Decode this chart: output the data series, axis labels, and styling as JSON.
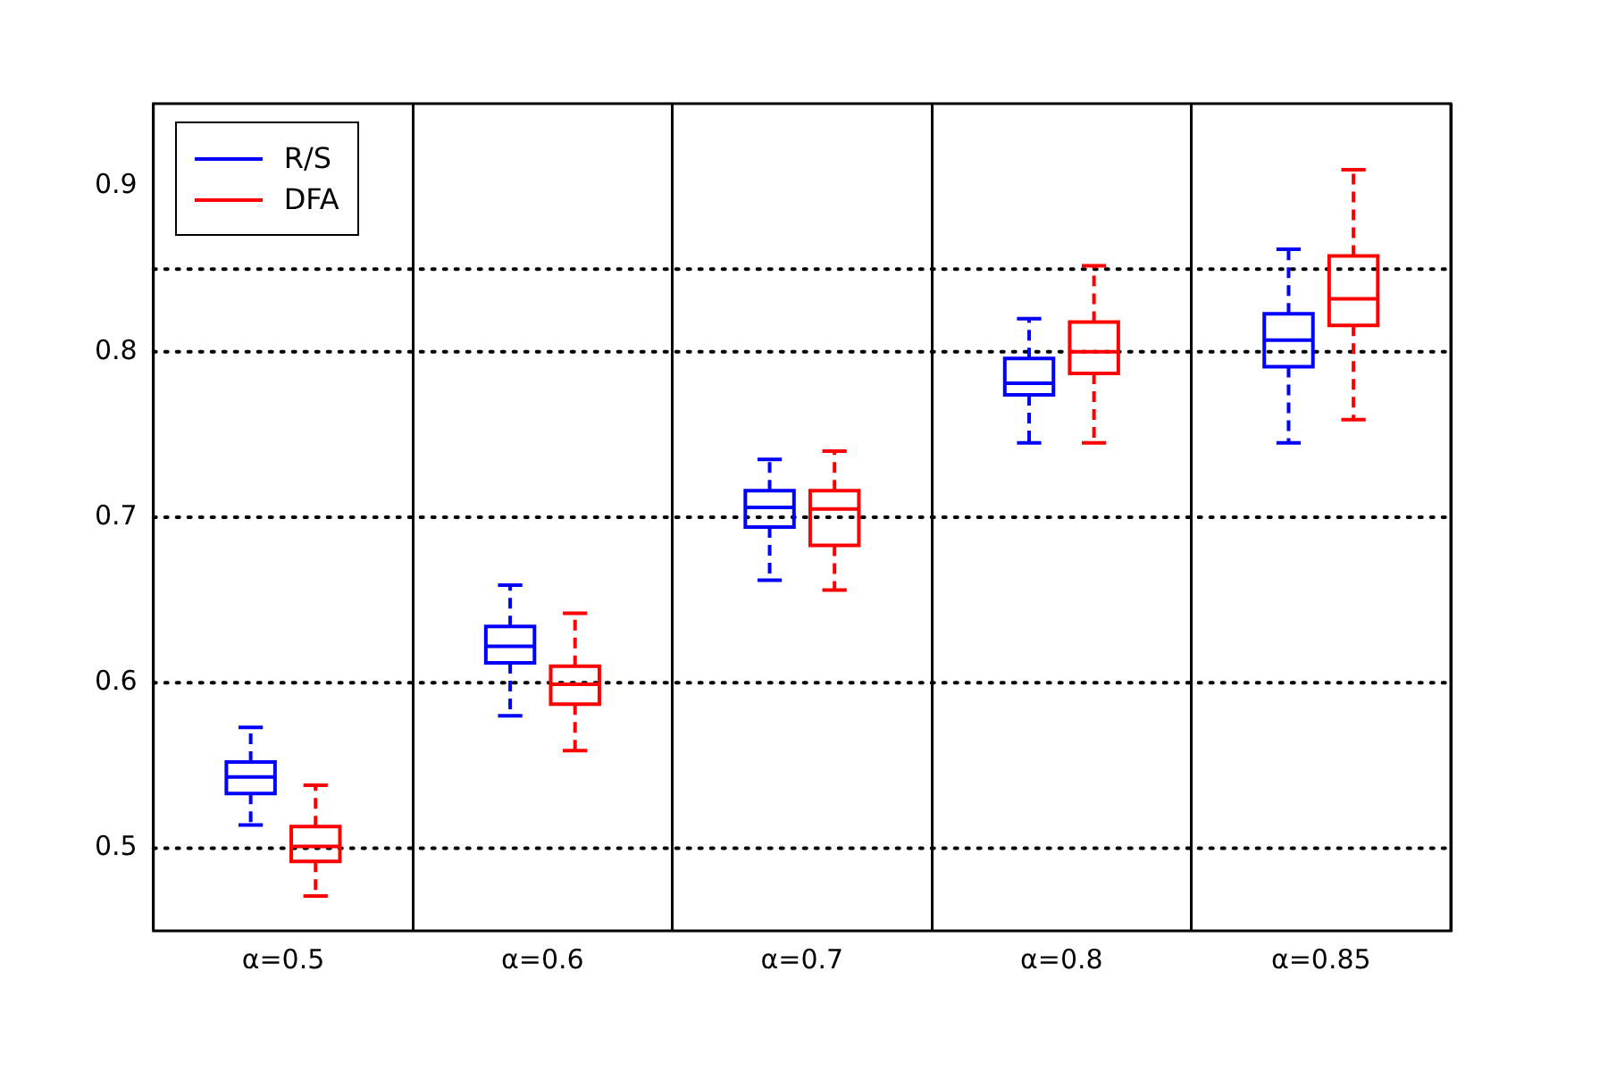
{
  "chart_data": {
    "type": "box",
    "categories": [
      "α=0.5",
      "α=0.6",
      "α=0.7",
      "α=0.8",
      "α=0.85"
    ],
    "series": [
      {
        "name": "R/S",
        "color": "#0000ff",
        "boxes": [
          {
            "low": 0.514,
            "q1": 0.533,
            "median": 0.543,
            "q3": 0.552,
            "high": 0.573
          },
          {
            "low": 0.58,
            "q1": 0.612,
            "median": 0.622,
            "q3": 0.634,
            "high": 0.659
          },
          {
            "low": 0.662,
            "q1": 0.694,
            "median": 0.706,
            "q3": 0.716,
            "high": 0.735
          },
          {
            "low": 0.745,
            "q1": 0.774,
            "median": 0.781,
            "q3": 0.796,
            "high": 0.82
          },
          {
            "low": 0.745,
            "q1": 0.791,
            "median": 0.807,
            "q3": 0.823,
            "high": 0.862
          }
        ]
      },
      {
        "name": "DFA",
        "color": "#ff0000",
        "boxes": [
          {
            "low": 0.471,
            "q1": 0.492,
            "median": 0.501,
            "q3": 0.513,
            "high": 0.538
          },
          {
            "low": 0.559,
            "q1": 0.587,
            "median": 0.599,
            "q3": 0.61,
            "high": 0.642
          },
          {
            "low": 0.656,
            "q1": 0.683,
            "median": 0.705,
            "q3": 0.716,
            "high": 0.74
          },
          {
            "low": 0.745,
            "q1": 0.787,
            "median": 0.8,
            "q3": 0.818,
            "high": 0.852
          },
          {
            "low": 0.759,
            "q1": 0.816,
            "median": 0.832,
            "q3": 0.858,
            "high": 0.91
          }
        ]
      }
    ],
    "ylim": [
      0.45,
      0.95
    ],
    "yticks": [
      0.5,
      0.6,
      0.7,
      0.8,
      0.9
    ],
    "ref_lines": [
      {
        "axis": "y",
        "value": 0.5,
        "line_style": "dotted",
        "color": "#000000"
      },
      {
        "axis": "y",
        "value": 0.6,
        "line_style": "dotted",
        "color": "#000000"
      },
      {
        "axis": "y",
        "value": 0.7,
        "line_style": "dotted",
        "color": "#000000"
      },
      {
        "axis": "y",
        "value": 0.8,
        "line_style": "dotted",
        "color": "#000000"
      },
      {
        "axis": "y",
        "value": 0.85,
        "line_style": "dotted",
        "color": "#000000"
      }
    ],
    "grid": "x",
    "legend": "top left",
    "line_style": "dashed"
  }
}
